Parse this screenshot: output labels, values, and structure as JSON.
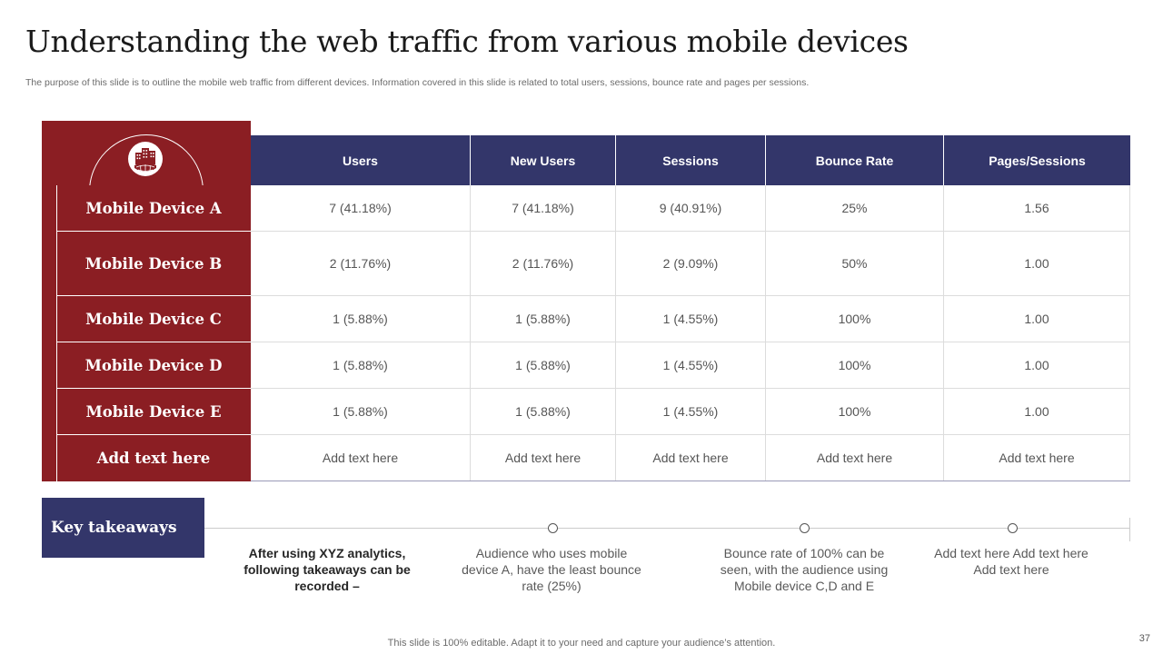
{
  "title": "Understanding the web traffic from various mobile devices",
  "subtitle": "The purpose of this slide is to outline the mobile web traffic from different devices. Information covered in this slide is related to total users, sessions, bounce rate and pages per sessions.",
  "table": {
    "columns": [
      "Users",
      "New Users",
      "Sessions",
      "Bounce Rate",
      "Pages/Sessions"
    ],
    "rows": [
      {
        "label": "Mobile Device A",
        "cells": [
          "7 (41.18%)",
          "7 (41.18%)",
          "9 (40.91%)",
          "25%",
          "1.56"
        ]
      },
      {
        "label": "Mobile Device B",
        "cells": [
          "2 (11.76%)",
          "2 (11.76%)",
          "2 (9.09%)",
          "50%",
          "1.00"
        ]
      },
      {
        "label": "Mobile Device C",
        "cells": [
          "1 (5.88%)",
          "1 (5.88%)",
          "1 (4.55%)",
          "100%",
          "1.00"
        ]
      },
      {
        "label": "Mobile Device D",
        "cells": [
          "1 (5.88%)",
          "1 (5.88%)",
          "1 (4.55%)",
          "100%",
          "1.00"
        ]
      },
      {
        "label": "Mobile Device E",
        "cells": [
          "1 (5.88%)",
          "1 (5.88%)",
          "1 (4.55%)",
          "100%",
          "1.00"
        ]
      },
      {
        "label": "Add text here",
        "cells": [
          "Add text here",
          "Add text here",
          "Add text here",
          "Add text here",
          "Add text here"
        ]
      }
    ]
  },
  "takeaways": {
    "heading": "Key takeaways",
    "intro": "After using XYZ analytics, following takeaways can be recorded –",
    "items": [
      "Audience who uses mobile device A, have the least bounce rate (25%)",
      "Bounce rate of 100% can be seen, with the audience using Mobile device C,D and E",
      "Add text here Add text here Add text here"
    ]
  },
  "footer": "This slide is 100% editable. Adapt it to your need and capture your audience’s attention.",
  "page_number": "37",
  "colors": {
    "accent_red": "#8b1e23",
    "accent_navy": "#33366a"
  },
  "icons": {
    "header_icon": "building-globe-icon"
  }
}
